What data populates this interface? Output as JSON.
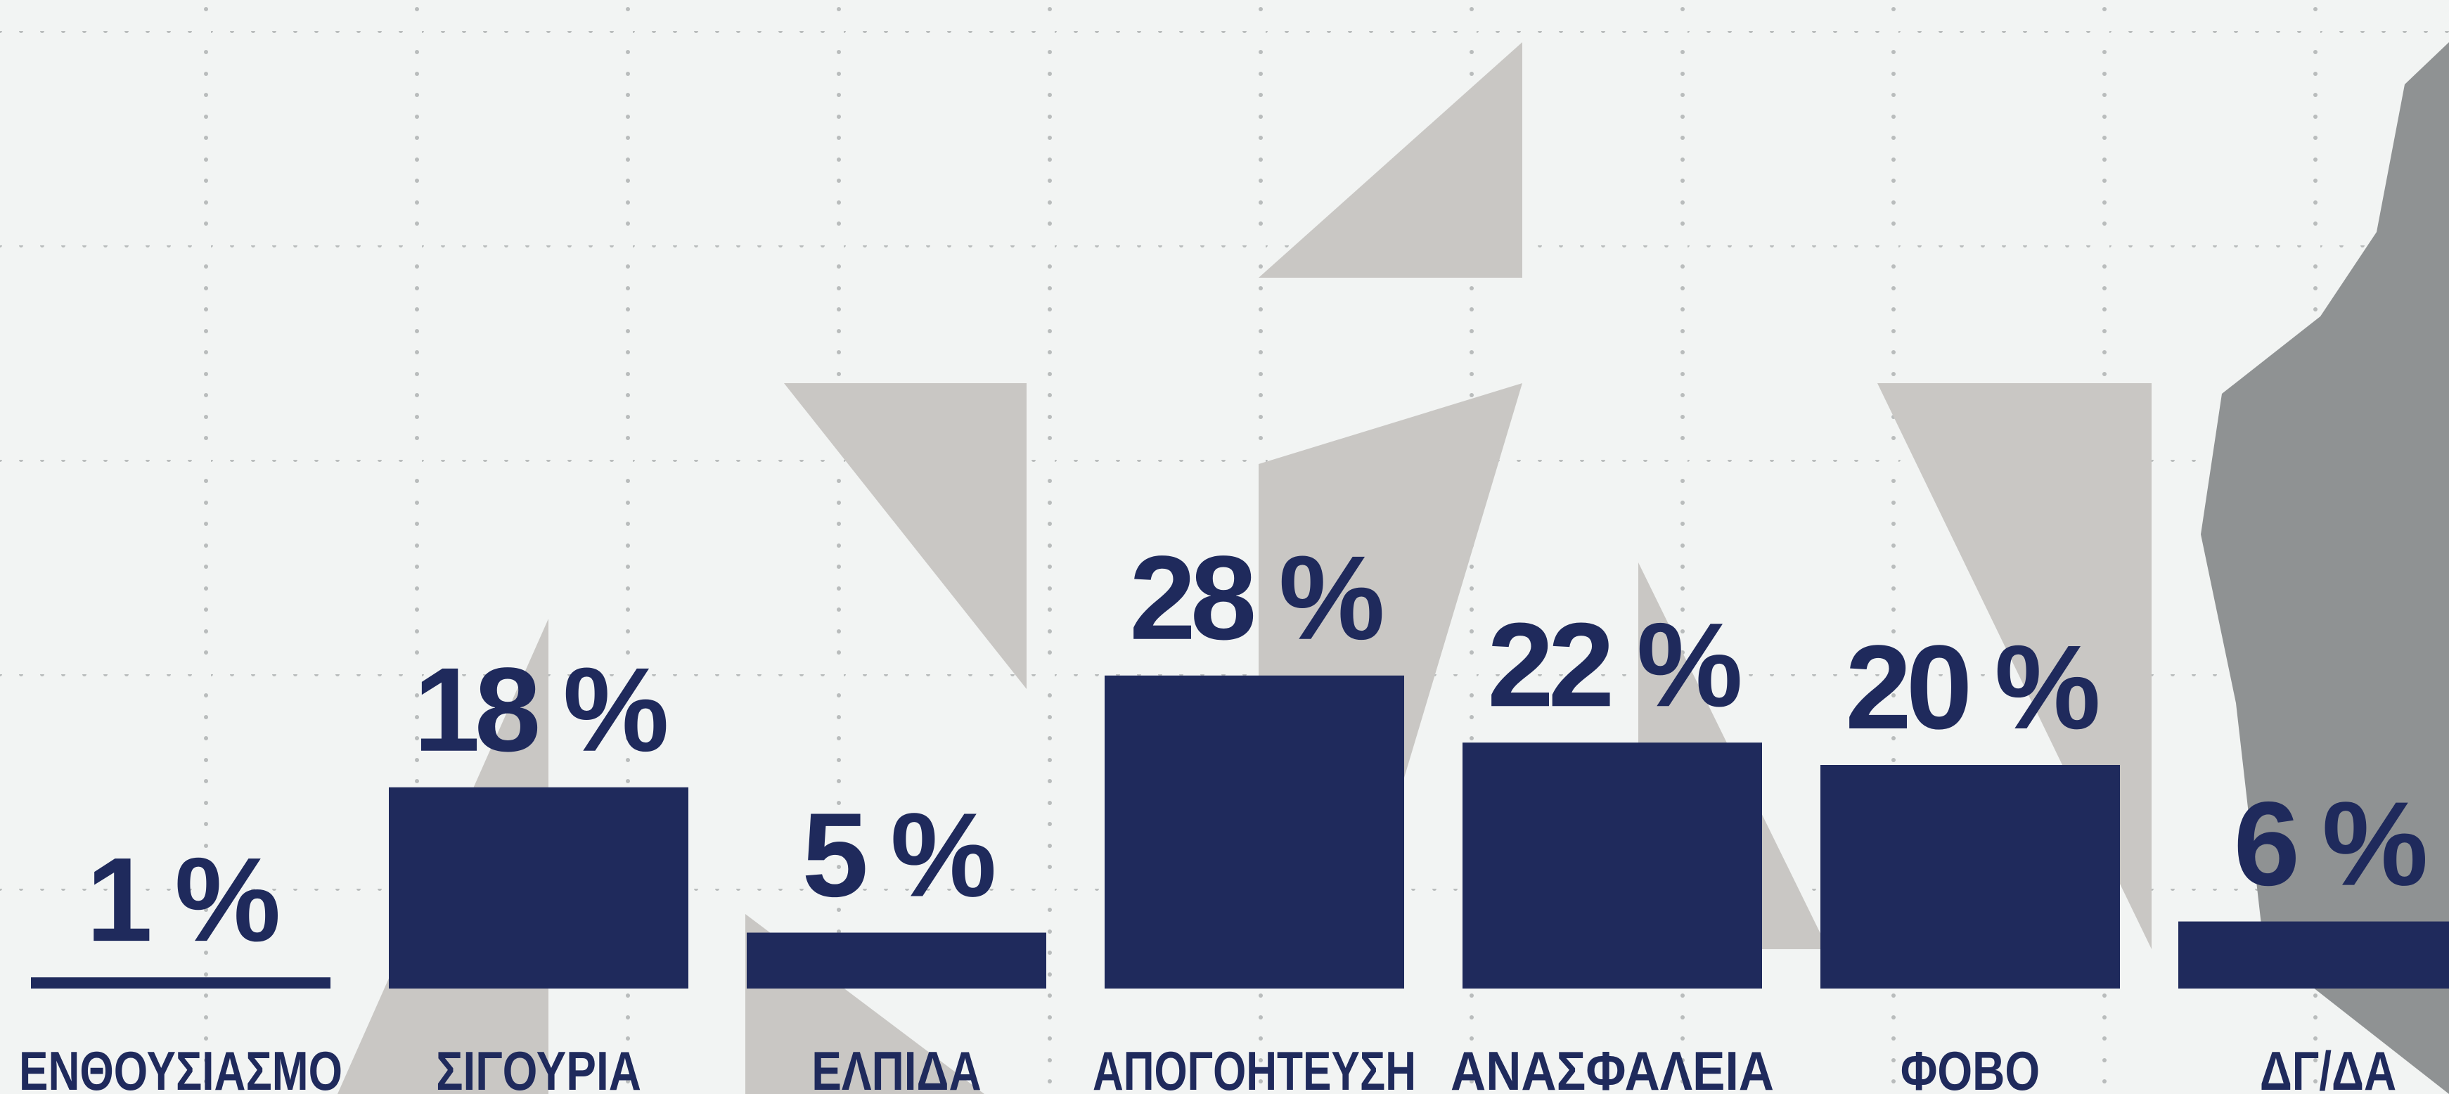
{
  "chart_data": {
    "type": "bar",
    "categories": [
      "ΕΝΘΟΥΣΙΑΣΜΟ",
      "ΣΙΓΟΥΡΙΑ",
      "ΕΛΠΙΔΑ",
      "ΑΠΟΓΟΗΤΕΥΣΗ",
      "ΑΝΑΣΦΑΛΕΙΑ",
      "ΦΟΒΟ",
      "ΔΓ/ΔΑ"
    ],
    "values": [
      1,
      18,
      5,
      28,
      22,
      20,
      6
    ],
    "value_labels": [
      "1 %",
      "18 %",
      "5 %",
      "28 %",
      "22 %",
      "20 %",
      "6 %"
    ],
    "color": "#1f2a5c"
  }
}
